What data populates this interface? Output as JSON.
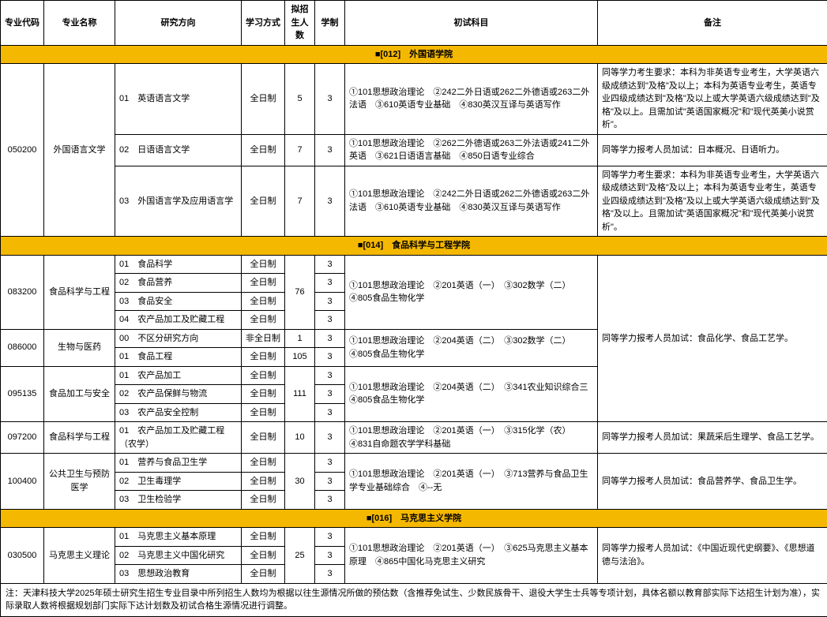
{
  "headers": {
    "code": "专业代码",
    "name": "专业名称",
    "direction": "研究方向",
    "mode": "学习方式",
    "enroll": "拟招生人数",
    "system": "学制",
    "subjects": "初试科目",
    "remarks": "备注"
  },
  "colors": {
    "section_bg": "#f5b800",
    "border": "#000000",
    "background": "#ffffff"
  },
  "section1": {
    "header": "■[012]　外国语学院",
    "r1": {
      "code": "050200",
      "name": "外国语言文学",
      "dir": "01　英语语言文学",
      "mode": "全日制",
      "enroll": "5",
      "sys": "3",
      "subj": "①101思想政治理论　②242二外日语或262二外德语或263二外法语　③610英语专业基础　④830英汉互译与英语写作",
      "rem": "同等学力考生要求：本科为非英语专业考生，大学英语六级成绩达到\"及格\"及以上；本科为英语专业考生，英语专业四级成绩达到\"及格\"及以上或大学英语六级成绩达到\"及格\"及以上。且需加试\"英语国家概况\"和\"现代英美小说赏析\"。"
    },
    "r2": {
      "dir": "02　日语语言文学",
      "mode": "全日制",
      "enroll": "7",
      "sys": "3",
      "subj": "①101思想政治理论　②262二外德语或263二外法语或241二外英语　③621日语语言基础　④850日语专业综合",
      "rem": "同等学力报考人员加试：日本概况、日语听力。"
    },
    "r3": {
      "dir": "03　外国语言学及应用语言学",
      "mode": "全日制",
      "enroll": "7",
      "sys": "3",
      "subj": "①101思想政治理论　②242二外日语或262二外德语或263二外法语　③610英语专业基础　④830英汉互译与英语写作",
      "rem": "同等学力考生要求：本科为非英语专业考生，大学英语六级成绩达到\"及格\"及以上；本科为英语专业考生，英语专业四级成绩达到\"及格\"及以上或大学英语六级成绩达到\"及格\"及以上。且需加试\"英语国家概况\"和\"现代英美小说赏析\"。"
    }
  },
  "section2": {
    "header": "■[014]　食品科学与工程学院",
    "g1": {
      "code": "083200",
      "name": "食品科学与工程",
      "d1": "01　食品科学",
      "d2": "02　食品营养",
      "d3": "03　食品安全",
      "d4": "04　农产品加工及贮藏工程",
      "mode": "全日制",
      "enroll": "76",
      "sys": "3",
      "subj": "①101思想政治理论　②201英语（一）　③302数学（二）　④805食品生物化学",
      "rem": "同等学力报考人员加试：食品化学、食品工艺学。"
    },
    "g2": {
      "code": "086000",
      "name": "生物与医药",
      "d1": "00　不区分研究方向",
      "d2": "01　食品工程",
      "mode1": "非全日制",
      "mode2": "全日制",
      "enroll1": "1",
      "enroll2": "105",
      "sys": "3",
      "subj": "①101思想政治理论　②204英语（二）　③302数学（二）　④805食品生物化学"
    },
    "g3": {
      "code": "095135",
      "name": "食品加工与安全",
      "d1": "01　农产品加工",
      "d2": "02　农产品保鲜与物流",
      "d3": "03　农产品安全控制",
      "mode": "全日制",
      "enroll": "111",
      "sys": "3",
      "subj": "①101思想政治理论　②204英语（二）　③341农业知识综合三　④805食品生物化学"
    },
    "g4": {
      "code": "097200",
      "name": "食品科学与工程",
      "d1": "01　农产品加工及贮藏工程（农学）",
      "mode": "全日制",
      "enroll": "10",
      "sys": "3",
      "subj": "①101思想政治理论　②201英语（一）　③315化学（农）　④831自命题农学学科基础",
      "rem": "同等学力报考人员加试：果蔬采后生理学、食品工艺学。"
    },
    "g5": {
      "code": "100400",
      "name": "公共卫生与预防医学",
      "d1": "01　营养与食品卫生学",
      "d2": "02　卫生毒理学",
      "d3": "03　卫生检验学",
      "mode": "全日制",
      "enroll": "30",
      "sys": "3",
      "subj": "①101思想政治理论　②201英语（一）　③713营养与食品卫生学专业基础综合　④--无",
      "rem": "同等学力报考人员加试：食品营养学、食品卫生学。"
    }
  },
  "section3": {
    "header": "■[016]　马克思主义学院",
    "g1": {
      "code": "030500",
      "name": "马克思主义理论",
      "d1": "01　马克思主义基本原理",
      "d2": "02　马克思主义中国化研究",
      "d3": "03　思想政治教育",
      "mode": "全日制",
      "enroll": "25",
      "sys": "3",
      "subj": "①101思想政治理论　②201英语（一）　③625马克思主义基本原理　④865中国化马克思主义研究",
      "rem": "同等学力报考人员加试：《中国近现代史纲要》、《思想道德与法治》。"
    }
  },
  "footer": "注：天津科技大学2025年硕士研究生招生专业目录中所列招生人数均为根据以往生源情况所做的预估数（含推荐免试生、少数民族骨干、退役大学生士兵等专项计划，具体名额以教育部实际下达招生计划为准），实际录取人数将根据规划部门实际下达计划数及初试合格生源情况进行调整。"
}
